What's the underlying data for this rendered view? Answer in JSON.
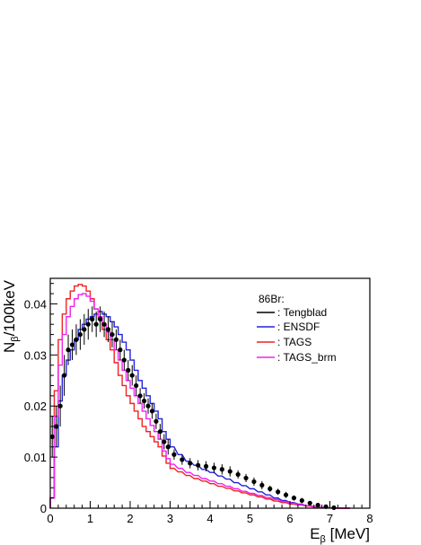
{
  "chart_data": {
    "type": "line",
    "xlabel_main": "E",
    "xlabel_sub": "β",
    "xlabel_unit": " [MeV]",
    "ylabel_main": "N",
    "ylabel_sub": "β",
    "ylabel_unit": "/100keV",
    "xlim": [
      0,
      8
    ],
    "ylim": [
      0,
      0.045
    ],
    "x_ticks": [
      0,
      1,
      2,
      3,
      4,
      5,
      6,
      7,
      8
    ],
    "y_ticks": [
      0,
      0.01,
      0.02,
      0.03,
      0.04
    ],
    "x_tick_labels": [
      "0",
      "1",
      "2",
      "3",
      "4",
      "5",
      "6",
      "7",
      "8"
    ],
    "y_tick_labels": [
      "0",
      "0.01",
      "0.02",
      "0.03",
      "0.04"
    ],
    "legend": {
      "title": "86Br:",
      "position": "top-right",
      "entries": [
        ": Tengblad",
        ": ENSDF",
        ": TAGS",
        ": TAGS_brm"
      ]
    },
    "series": [
      {
        "name": ": ENSDF",
        "style": "step",
        "color": "#2222dd",
        "x": [
          0.0,
          0.1,
          0.2,
          0.3,
          0.4,
          0.5,
          0.6,
          0.7,
          0.8,
          0.9,
          1.0,
          1.1,
          1.2,
          1.3,
          1.4,
          1.5,
          1.6,
          1.7,
          1.8,
          1.9,
          2.0,
          2.1,
          2.2,
          2.3,
          2.4,
          2.5,
          2.6,
          2.7,
          2.8,
          2.9,
          3.0,
          3.2,
          3.4,
          3.6,
          3.8,
          4.0,
          4.2,
          4.4,
          4.6,
          4.8,
          5.0,
          5.2,
          5.4,
          5.6,
          5.8,
          6.0,
          6.2,
          6.4,
          6.6,
          6.8,
          7.0,
          7.2,
          7.4
        ],
        "y": [
          0.002,
          0.012,
          0.021,
          0.026,
          0.029,
          0.031,
          0.033,
          0.035,
          0.036,
          0.037,
          0.0375,
          0.038,
          0.0385,
          0.038,
          0.0375,
          0.0365,
          0.0355,
          0.034,
          0.0325,
          0.031,
          0.029,
          0.027,
          0.025,
          0.0235,
          0.022,
          0.0205,
          0.019,
          0.0175,
          0.015,
          0.0135,
          0.012,
          0.0105,
          0.0092,
          0.0084,
          0.0076,
          0.007,
          0.0063,
          0.0057,
          0.005,
          0.0044,
          0.0038,
          0.0032,
          0.0026,
          0.002,
          0.0015,
          0.0011,
          0.0008,
          0.0005,
          0.0003,
          0.00015,
          5e-05,
          0.0,
          0.0
        ]
      },
      {
        "name": ": TAGS",
        "style": "step",
        "color": "#ee2222",
        "x": [
          0.0,
          0.1,
          0.2,
          0.3,
          0.4,
          0.5,
          0.6,
          0.7,
          0.8,
          0.9,
          1.0,
          1.1,
          1.2,
          1.3,
          1.4,
          1.5,
          1.6,
          1.7,
          1.8,
          1.9,
          2.0,
          2.1,
          2.2,
          2.3,
          2.4,
          2.5,
          2.6,
          2.7,
          2.8,
          2.9,
          3.0,
          3.2,
          3.4,
          3.6,
          3.8,
          4.0,
          4.2,
          4.4,
          4.6,
          4.8,
          5.0,
          5.2,
          5.4,
          5.6,
          5.8,
          6.0,
          6.2,
          6.4,
          6.6,
          6.8,
          7.0,
          7.2,
          7.4
        ],
        "y": [
          0.002,
          0.023,
          0.033,
          0.038,
          0.041,
          0.0425,
          0.0435,
          0.0438,
          0.0435,
          0.0425,
          0.041,
          0.039,
          0.037,
          0.035,
          0.033,
          0.031,
          0.0285,
          0.026,
          0.024,
          0.022,
          0.0205,
          0.019,
          0.0175,
          0.016,
          0.015,
          0.014,
          0.013,
          0.012,
          0.0102,
          0.0088,
          0.0078,
          0.0071,
          0.0064,
          0.0058,
          0.0053,
          0.0048,
          0.0043,
          0.0039,
          0.0034,
          0.003,
          0.0026,
          0.0022,
          0.0018,
          0.0014,
          0.0011,
          0.0008,
          0.0006,
          0.0004,
          0.0002,
          0.0001,
          4e-05,
          0.0,
          0.0
        ]
      },
      {
        "name": ": TAGS_brm",
        "style": "step",
        "color": "#ee22ee",
        "x": [
          0.0,
          0.1,
          0.2,
          0.3,
          0.4,
          0.5,
          0.6,
          0.7,
          0.8,
          0.9,
          1.0,
          1.1,
          1.2,
          1.3,
          1.4,
          1.5,
          1.6,
          1.7,
          1.8,
          1.9,
          2.0,
          2.1,
          2.2,
          2.3,
          2.4,
          2.5,
          2.6,
          2.7,
          2.8,
          2.9,
          3.0,
          3.2,
          3.4,
          3.6,
          3.8,
          4.0,
          4.2,
          4.4,
          4.6,
          4.8,
          5.0,
          5.2,
          5.4,
          5.6,
          5.8,
          6.0,
          6.2,
          6.4,
          6.6,
          6.8,
          7.0,
          7.2,
          7.4
        ],
        "y": [
          0.002,
          0.018,
          0.028,
          0.034,
          0.0375,
          0.0395,
          0.041,
          0.0418,
          0.042,
          0.0415,
          0.0405,
          0.039,
          0.0375,
          0.036,
          0.0345,
          0.033,
          0.031,
          0.029,
          0.027,
          0.025,
          0.0235,
          0.022,
          0.0205,
          0.019,
          0.0175,
          0.0162,
          0.015,
          0.0135,
          0.0112,
          0.0097,
          0.0086,
          0.0078,
          0.007,
          0.0064,
          0.0058,
          0.0053,
          0.0048,
          0.0043,
          0.0038,
          0.0033,
          0.0029,
          0.0025,
          0.0021,
          0.0017,
          0.0013,
          0.001,
          0.0007,
          0.0005,
          0.0003,
          0.00015,
          5e-05,
          0.0,
          0.0
        ]
      },
      {
        "name": ": Tengblad",
        "style": "points",
        "color": "#000000",
        "x": [
          0.05,
          0.15,
          0.25,
          0.35,
          0.45,
          0.55,
          0.65,
          0.75,
          0.85,
          0.95,
          1.05,
          1.15,
          1.25,
          1.35,
          1.45,
          1.55,
          1.65,
          1.75,
          1.85,
          1.95,
          2.05,
          2.15,
          2.25,
          2.35,
          2.45,
          2.55,
          2.65,
          2.75,
          2.85,
          2.95,
          3.1,
          3.3,
          3.5,
          3.7,
          3.9,
          4.1,
          4.3,
          4.5,
          4.7,
          4.9,
          5.1,
          5.3,
          5.5,
          5.7,
          5.9,
          6.1,
          6.3,
          6.5,
          6.7,
          6.9,
          7.1
        ],
        "y": [
          0.014,
          0.016,
          0.02,
          0.026,
          0.031,
          0.032,
          0.033,
          0.034,
          0.035,
          0.036,
          0.037,
          0.036,
          0.037,
          0.036,
          0.035,
          0.034,
          0.033,
          0.031,
          0.029,
          0.027,
          0.026,
          0.024,
          0.022,
          0.021,
          0.02,
          0.019,
          0.017,
          0.015,
          0.013,
          0.012,
          0.0105,
          0.0095,
          0.0088,
          0.0084,
          0.0082,
          0.0079,
          0.0076,
          0.0072,
          0.0066,
          0.0059,
          0.0052,
          0.0045,
          0.0038,
          0.0032,
          0.0026,
          0.002,
          0.0015,
          0.001,
          0.0006,
          0.0003,
          0.0001
        ],
        "err": [
          0.004,
          0.004,
          0.004,
          0.004,
          0.003,
          0.003,
          0.003,
          0.003,
          0.003,
          0.003,
          0.0025,
          0.0025,
          0.0025,
          0.0025,
          0.0025,
          0.0025,
          0.002,
          0.002,
          0.002,
          0.002,
          0.002,
          0.002,
          0.0015,
          0.0015,
          0.0015,
          0.0015,
          0.0015,
          0.0015,
          0.0015,
          0.0015,
          0.001,
          0.001,
          0.001,
          0.001,
          0.001,
          0.001,
          0.001,
          0.001,
          0.0008,
          0.0008,
          0.0008,
          0.0008,
          0.0006,
          0.0006,
          0.0006,
          0.0005,
          0.0005,
          0.0004,
          0.0004,
          0.0003,
          0.0002
        ]
      }
    ]
  }
}
